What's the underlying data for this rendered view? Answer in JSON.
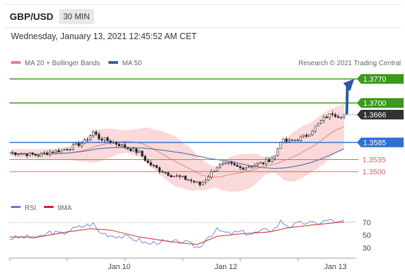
{
  "header": {
    "symbol": "GBP/USD",
    "timeframe": "30 MIN"
  },
  "datetime": "Wednesday, January 13, 2021 12:45:52 AM CET",
  "legend": {
    "ma20_bb": "MA 20 + Bollinger Bands",
    "ma50": "MA 50",
    "credit": "Research © 2021 Trading Central",
    "rsi": "RSI",
    "ma9": "9MA"
  },
  "colors": {
    "up": "#3a9a1a",
    "candle": "#222222",
    "bb_fill": "#f7c9c9",
    "ma20": "#e88080",
    "ma50": "#3a5fa8",
    "support_blue": "#2f6fd6",
    "red_level": "#e06060",
    "rsi": "#5a7fd8",
    "rsi_ma": "#d92020",
    "arrow": "#2a5aa0",
    "current_price_bg": "#333333"
  },
  "chart_data": [
    {
      "type": "candlestick",
      "symbol": "GBP/USD",
      "interval": "30 MIN",
      "y_range": [
        1.342,
        1.38
      ],
      "current_price": 1.3666,
      "levels": [
        {
          "value": 1.377,
          "label": "1.3770",
          "kind": "target"
        },
        {
          "value": 1.37,
          "label": "1.3700",
          "kind": "target"
        },
        {
          "value": 1.3585,
          "label": "1.3585",
          "kind": "pivot"
        },
        {
          "value": 1.3535,
          "label": "1.3535",
          "kind": "support"
        },
        {
          "value": 1.35,
          "label": "1.3500",
          "kind": "support"
        }
      ],
      "current_label": "1.3666",
      "x_ticks": [
        "Jan 10",
        "Jan 12",
        "Jan 13"
      ],
      "close_path": [
        [
          0,
          1.3555
        ],
        [
          5,
          1.3552
        ],
        [
          10,
          1.3548
        ],
        [
          14,
          1.3557
        ],
        [
          18,
          1.3562
        ],
        [
          22,
          1.3573
        ],
        [
          26,
          1.3587
        ],
        [
          29,
          1.3615
        ],
        [
          31,
          1.3598
        ],
        [
          35,
          1.3588
        ],
        [
          40,
          1.3572
        ],
        [
          45,
          1.3555
        ],
        [
          48,
          1.3525
        ],
        [
          52,
          1.3505
        ],
        [
          56,
          1.349
        ],
        [
          60,
          1.3482
        ],
        [
          64,
          1.347
        ],
        [
          66,
          1.3462
        ],
        [
          68,
          1.3478
        ],
        [
          72,
          1.3515
        ],
        [
          76,
          1.3522
        ],
        [
          80,
          1.351
        ],
        [
          84,
          1.3518
        ],
        [
          88,
          1.3525
        ],
        [
          92,
          1.3545
        ],
        [
          94,
          1.359
        ],
        [
          97,
          1.3588
        ],
        [
          100,
          1.3595
        ],
        [
          103,
          1.3605
        ],
        [
          106,
          1.363
        ],
        [
          109,
          1.3655
        ],
        [
          112,
          1.367
        ],
        [
          114,
          1.3662
        ],
        [
          116,
          1.3666
        ]
      ]
    },
    {
      "type": "line",
      "title": "RSI",
      "series_names": [
        "RSI",
        "9MA"
      ],
      "y_ticks": [
        70,
        50,
        30
      ],
      "rsi_path": [
        [
          0,
          45
        ],
        [
          5,
          47
        ],
        [
          10,
          45
        ],
        [
          14,
          55
        ],
        [
          18,
          52
        ],
        [
          22,
          60
        ],
        [
          26,
          65
        ],
        [
          29,
          68
        ],
        [
          31,
          55
        ],
        [
          35,
          50
        ],
        [
          40,
          47
        ],
        [
          45,
          42
        ],
        [
          48,
          36
        ],
        [
          52,
          40
        ],
        [
          56,
          38
        ],
        [
          60,
          40
        ],
        [
          64,
          33
        ],
        [
          66,
          30
        ],
        [
          68,
          45
        ],
        [
          72,
          58
        ],
        [
          76,
          52
        ],
        [
          80,
          55
        ],
        [
          84,
          52
        ],
        [
          88,
          57
        ],
        [
          92,
          60
        ],
        [
          94,
          72
        ],
        [
          97,
          64
        ],
        [
          100,
          68
        ],
        [
          103,
          70
        ],
        [
          106,
          68
        ],
        [
          109,
          72
        ],
        [
          112,
          74
        ],
        [
          114,
          70
        ],
        [
          116,
          72
        ]
      ],
      "ma9_path": [
        [
          0,
          47
        ],
        [
          10,
          47
        ],
        [
          20,
          55
        ],
        [
          28,
          60
        ],
        [
          35,
          58
        ],
        [
          45,
          47
        ],
        [
          55,
          40
        ],
        [
          65,
          35
        ],
        [
          72,
          48
        ],
        [
          80,
          52
        ],
        [
          90,
          55
        ],
        [
          97,
          62
        ],
        [
          105,
          66
        ],
        [
          116,
          71
        ]
      ]
    }
  ]
}
